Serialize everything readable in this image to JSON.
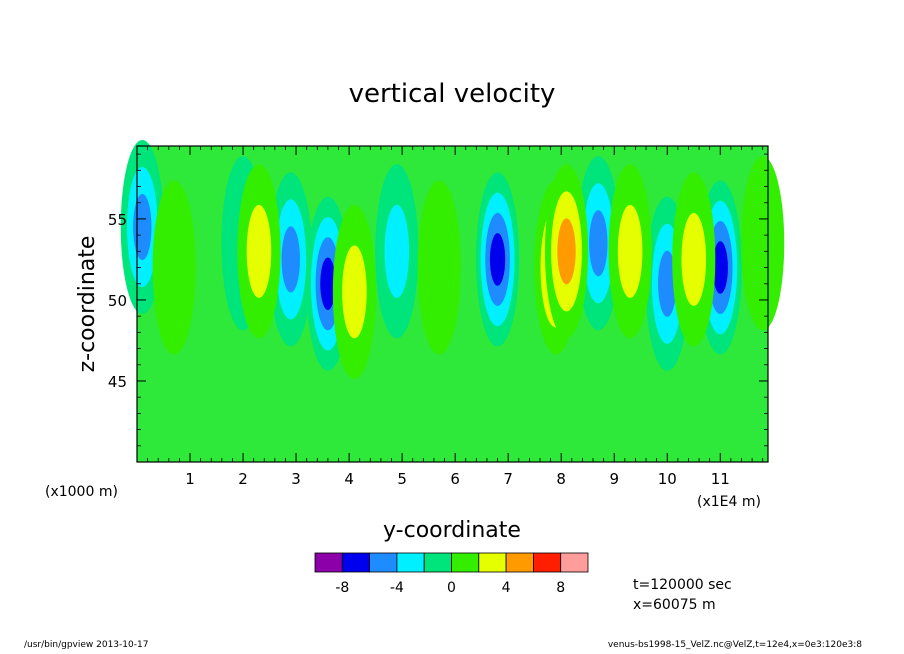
{
  "chart_data": {
    "type": "heatmap",
    "title": "vertical velocity",
    "xlabel": "y-coordinate",
    "ylabel": "z-coordinate",
    "x_unit_left": "(x1000 m)",
    "x_unit_right": "(x1E4 m)",
    "xlim": [
      0.0,
      11.9
    ],
    "ylim": [
      40.0,
      59.5
    ],
    "x_ticks": [
      1,
      2,
      3,
      4,
      5,
      6,
      7,
      8,
      9,
      10,
      11
    ],
    "x_tick_labels": [
      "1",
      "2",
      "3",
      "4",
      "5",
      "6",
      "7",
      "8",
      "9",
      "10",
      "11"
    ],
    "y_ticks": [
      45,
      50,
      55
    ],
    "y_tick_labels": [
      "45",
      "50",
      "55"
    ],
    "colorbar": {
      "levels": [
        -10,
        -8,
        -6,
        -4,
        -2,
        0,
        2,
        4,
        6,
        8,
        10
      ],
      "colors": [
        "#8b00a8",
        "#0000ee",
        "#1e8cff",
        "#00f0ff",
        "#00e47c",
        "#34ee00",
        "#e6ff00",
        "#ff9b00",
        "#ff1e00",
        "#ff9c9c"
      ],
      "tick_values": [
        -8,
        -4,
        0,
        4,
        8
      ],
      "tick_labels": [
        "-8",
        "-4",
        "0",
        "4",
        "8"
      ]
    },
    "background_level_color": "#2ee83a",
    "features": [
      {
        "y": 2.0,
        "z": 53.5,
        "w": -1.5
      },
      {
        "y": 2.9,
        "z": 52.5,
        "w": -6.0
      },
      {
        "y": 3.6,
        "z": 51.0,
        "w": -7.5
      },
      {
        "y": 4.9,
        "z": 53.0,
        "w": -4.5
      },
      {
        "y": 6.8,
        "z": 52.5,
        "w": -7.0
      },
      {
        "y": 8.7,
        "z": 53.5,
        "w": -5.0
      },
      {
        "y": 10.0,
        "z": 51.0,
        "w": -5.0
      },
      {
        "y": 11.0,
        "z": 52.0,
        "w": -8.5
      },
      {
        "y": 0.1,
        "z": 54.5,
        "w": -6.5
      },
      {
        "y": 2.3,
        "z": 53.0,
        "w": 4.0
      },
      {
        "y": 4.1,
        "z": 50.5,
        "w": 3.0
      },
      {
        "y": 5.7,
        "z": 52.0,
        "w": 2.5
      },
      {
        "y": 7.9,
        "z": 52.0,
        "w": 5.0
      },
      {
        "y": 8.1,
        "z": 53.0,
        "w": 6.0
      },
      {
        "y": 9.3,
        "z": 53.0,
        "w": 4.0
      },
      {
        "y": 10.5,
        "z": 52.5,
        "w": 3.0
      },
      {
        "y": 0.7,
        "z": 52.0,
        "w": 2.5
      },
      {
        "y": 11.8,
        "z": 53.5,
        "w": 2.5
      }
    ]
  },
  "annotations": {
    "time": "t=120000 sec",
    "position": "x=60075 m"
  },
  "footer": {
    "left": "/usr/bin/gpview   2013-10-17",
    "right": "venus-bs1998-15_VelZ.nc@VelZ,t=12e4,x=0e3:120e3:8"
  }
}
